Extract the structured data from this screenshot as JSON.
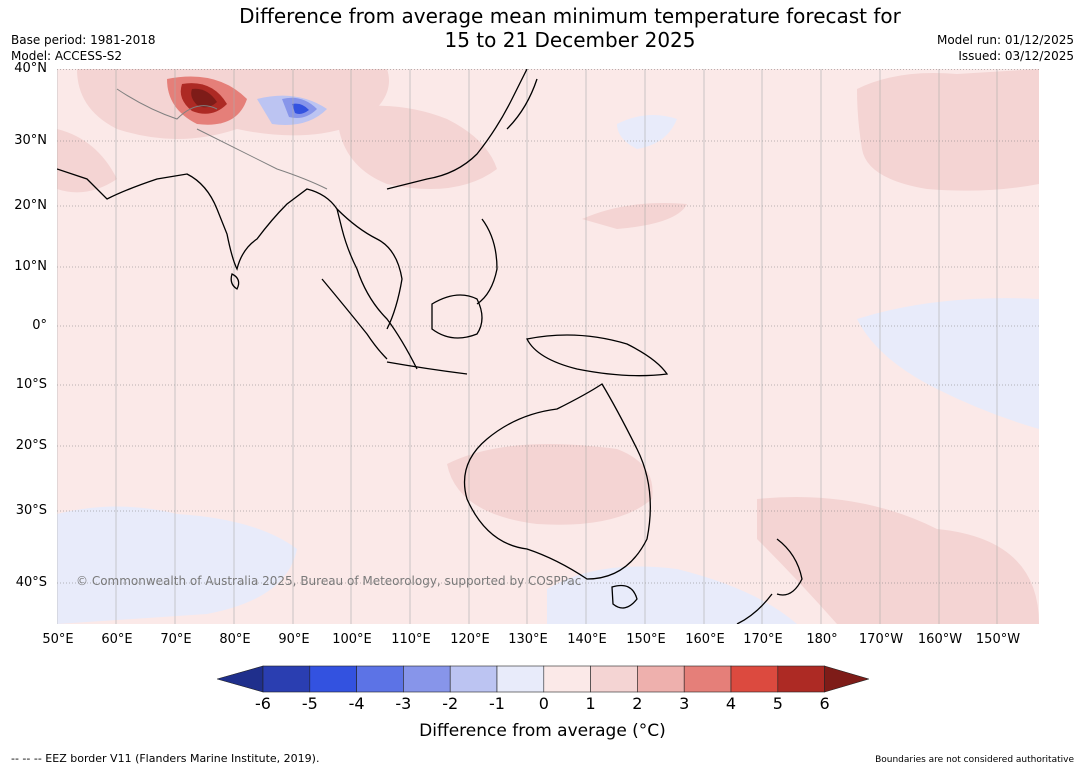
{
  "title_line1": "Difference from average mean minimum temperature forecast for",
  "title_line2": "15 to 21 December 2025",
  "base_period": "Base period: 1981-2018",
  "model": "Model: ACCESS-S2",
  "model_run": "Model run: 01/12/2025",
  "issued": "Issued: 03/12/2025",
  "lat_labels": [
    "40°N",
    "30°N",
    "20°N",
    "10°N",
    "0°",
    "10°S",
    "20°S",
    "30°S",
    "40°S"
  ],
  "lon_labels": [
    "50°E",
    "60°E",
    "70°E",
    "80°E",
    "90°E",
    "100°E",
    "110°E",
    "120°E",
    "130°E",
    "140°E",
    "150°E",
    "160°E",
    "170°E",
    "180°",
    "170°W",
    "160°W",
    "150°W"
  ],
  "copyright": "© Commonwealth of Australia 2025, Bureau of Meteorology, supported by COSPPac",
  "colorbar": {
    "title": "Difference from average (°C)",
    "ticks": [
      "-6",
      "-5",
      "-4",
      "-3",
      "-2",
      "-1",
      "0",
      "1",
      "2",
      "3",
      "4",
      "5",
      "6"
    ],
    "colors": [
      "#1f2f8c",
      "#2a3eb1",
      "#3352e0",
      "#5c73e6",
      "#8795ea",
      "#bcc4f2",
      "#e8ebfa",
      "#fbe9e8",
      "#f4d4d3",
      "#eeb0ad",
      "#e57f79",
      "#dc4a3f",
      "#ad2a24",
      "#7e1c18"
    ]
  },
  "footer_left": "--  --  -- EEZ border V11 (Flanders Marine Institute, 2019).",
  "footer_right": "Boundaries are not considered authoritative"
}
